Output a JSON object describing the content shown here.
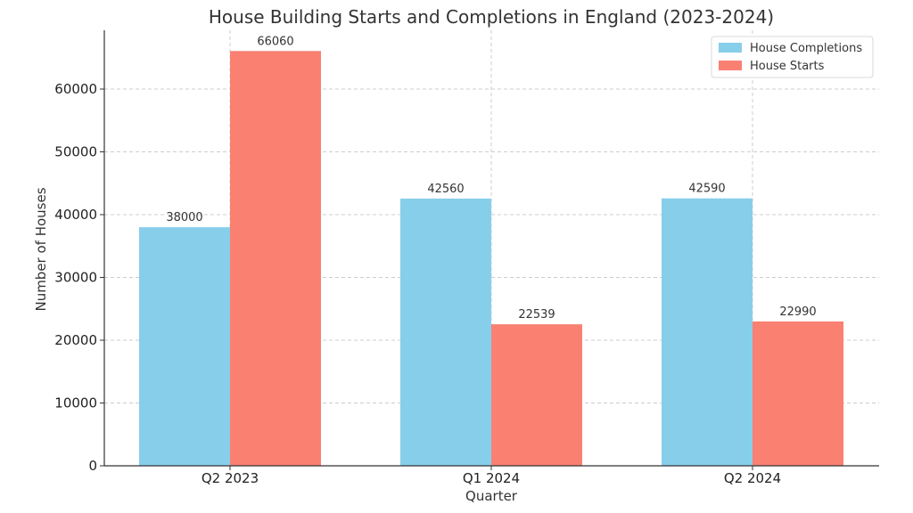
{
  "chart_data": {
    "type": "bar",
    "title": "House Building Starts and Completions in England (2023-2024)",
    "xlabel": "Quarter",
    "ylabel": "Number of Houses",
    "categories": [
      "Q2 2023",
      "Q1 2024",
      "Q2 2024"
    ],
    "series": [
      {
        "name": "House Completions",
        "values": [
          38000,
          42560,
          42590
        ],
        "color": "#87CEEB"
      },
      {
        "name": "House Starts",
        "values": [
          66060,
          22539,
          22990
        ],
        "color": "#FA8072"
      }
    ],
    "ylim": [
      0,
      69363
    ],
    "yticks": [
      0,
      10000,
      20000,
      30000,
      40000,
      50000,
      60000
    ],
    "grid": true,
    "legend_position": "top-right"
  }
}
